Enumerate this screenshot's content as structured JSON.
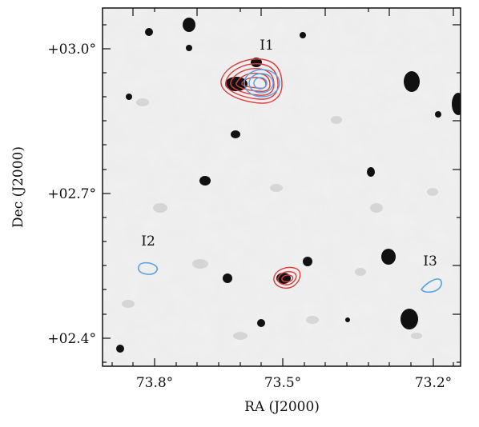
{
  "figure": {
    "xlabel": "RA (J2000)",
    "ylabel": "Dec (J2000)",
    "x_ticks": [
      "73.8°",
      "73.5°",
      "73.2°"
    ],
    "y_ticks": [
      "+03.0°",
      "+02.7°",
      "+02.4°"
    ],
    "sources": [
      {
        "id": "I1",
        "label": "I1"
      },
      {
        "id": "I2",
        "label": "I2"
      },
      {
        "id": "I3",
        "label": "I3"
      }
    ],
    "colors": {
      "radio_contours": "#d84040",
      "ir_contours": "#5aa0e6",
      "background": "#e8e8e8"
    }
  }
}
